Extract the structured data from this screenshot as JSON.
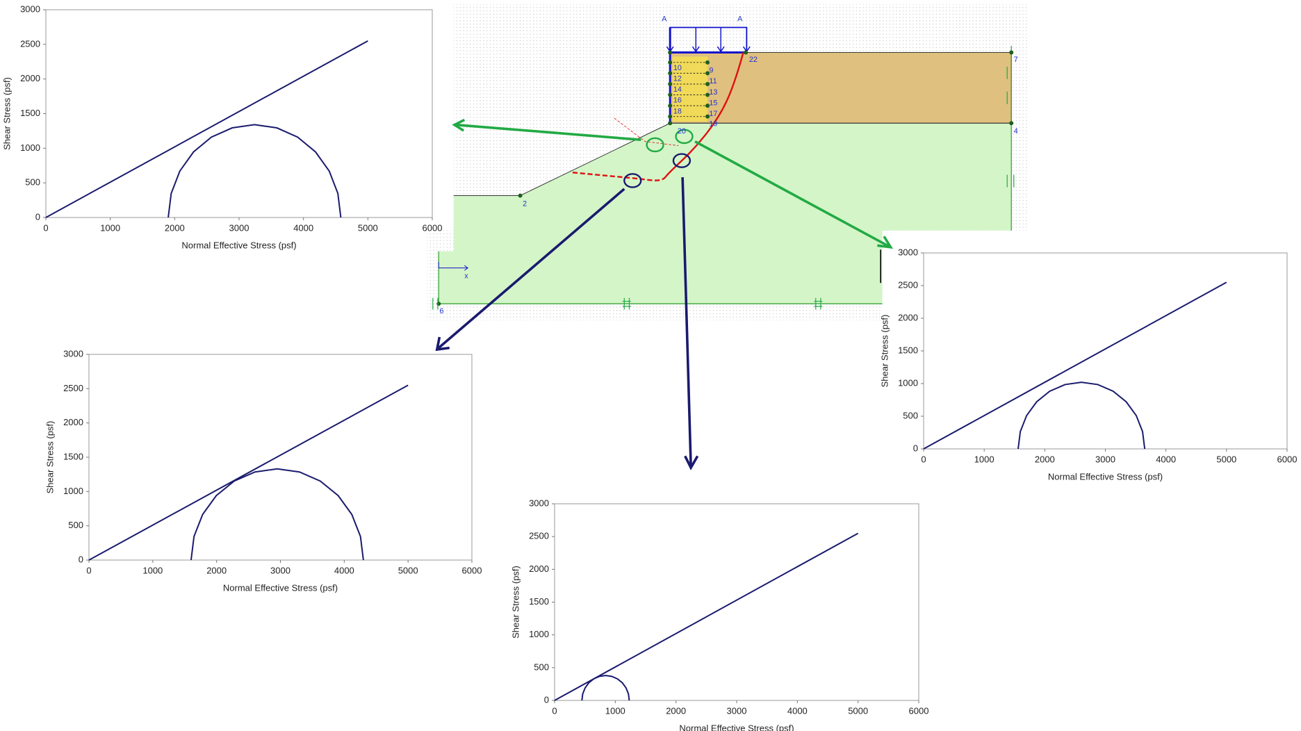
{
  "chart_data": [
    {
      "type": "line",
      "y_label": "Shear Stress (psf)",
      "x_label": "Normal Effective Stress (psf)",
      "xlim": [
        0,
        6000
      ],
      "ylim": [
        0,
        3000
      ],
      "xticks": [
        0,
        1000,
        2000,
        3000,
        4000,
        5000,
        6000
      ],
      "yticks": [
        0,
        500,
        1000,
        1500,
        2000,
        2500,
        3000
      ],
      "series": [
        {
          "color": "#1a1a6e",
          "x": [
            0,
            5000
          ],
          "values": [
            0,
            2550
          ]
        },
        {
          "color": "#1a1a6e",
          "x": [
            1900,
            1946,
            2080,
            2293,
            2570,
            2893,
            3240,
            3587,
            3910,
            4187,
            4400,
            4534,
            4580
          ],
          "values": [
            0,
            347,
            670,
            947,
            1160,
            1294,
            1340,
            1294,
            1160,
            947,
            670,
            347,
            0
          ]
        }
      ]
    },
    {
      "type": "line",
      "y_label": "Shear Stress (psf)",
      "x_label": "Normal Effective Stress (psf)",
      "xlim": [
        0,
        6000
      ],
      "ylim": [
        0,
        3000
      ],
      "xticks": [
        0,
        1000,
        2000,
        3000,
        4000,
        5000,
        6000
      ],
      "yticks": [
        0,
        500,
        1000,
        1500,
        2000,
        2500,
        3000
      ],
      "series": [
        {
          "color": "#1a1a6e",
          "x": [
            0,
            5000
          ],
          "values": [
            0,
            2550
          ]
        },
        {
          "color": "#1a1a6e",
          "x": [
            1600,
            1646,
            1781,
            1995,
            2275,
            2601,
            2950,
            3299,
            3625,
            3905,
            4119,
            4254,
            4300
          ],
          "values": [
            0,
            344,
            665,
            940,
            1152,
            1285,
            1330,
            1285,
            1152,
            940,
            665,
            344,
            0
          ]
        }
      ]
    },
    {
      "type": "line",
      "y_label": "Shear Stress (psf)",
      "x_label": "Normal Effective Stress (psf)",
      "xlim": [
        0,
        6000
      ],
      "ylim": [
        0,
        3000
      ],
      "xticks": [
        0,
        1000,
        2000,
        3000,
        4000,
        5000,
        6000
      ],
      "yticks": [
        0,
        500,
        1000,
        1500,
        2000,
        2500,
        3000
      ],
      "series": [
        {
          "color": "#1a1a6e",
          "x": [
            0,
            5000
          ],
          "values": [
            0,
            2550
          ]
        },
        {
          "color": "#1a1a6e",
          "x": [
            1560,
            1596,
            1700,
            1866,
            2082,
            2334,
            2605,
            2876,
            3128,
            3344,
            3510,
            3614,
            3650
          ],
          "values": [
            0,
            264,
            510,
            721,
            883,
            985,
            1020,
            985,
            883,
            721,
            510,
            264,
            0
          ]
        }
      ]
    },
    {
      "type": "line",
      "y_label": "Shear Stress (psf)",
      "x_label": "Normal Effective Stress (psf)",
      "xlim": [
        0,
        6000
      ],
      "ylim": [
        0,
        3000
      ],
      "xticks": [
        0,
        1000,
        2000,
        3000,
        4000,
        5000,
        6000
      ],
      "yticks": [
        0,
        500,
        1000,
        1500,
        2000,
        2500,
        3000
      ],
      "series": [
        {
          "color": "#1a1a6e",
          "x": [
            0,
            5000
          ],
          "values": [
            0,
            2550
          ]
        },
        {
          "color": "#1a1a6e",
          "x": [
            450,
            463,
            502,
            564,
            645,
            739,
            840,
            941,
            1035,
            1116,
            1178,
            1217,
            1230
          ],
          "values": [
            0,
            98,
            190,
            269,
            329,
            367,
            380,
            367,
            329,
            269,
            190,
            98,
            0
          ]
        }
      ]
    }
  ],
  "diagram": {
    "labels": [
      "A",
      "A",
      "22",
      "2",
      "7",
      "4",
      "6",
      "9",
      "11",
      "13",
      "15",
      "17",
      "19",
      "10",
      "12",
      "14",
      "16",
      "18",
      "20",
      "x"
    ]
  }
}
